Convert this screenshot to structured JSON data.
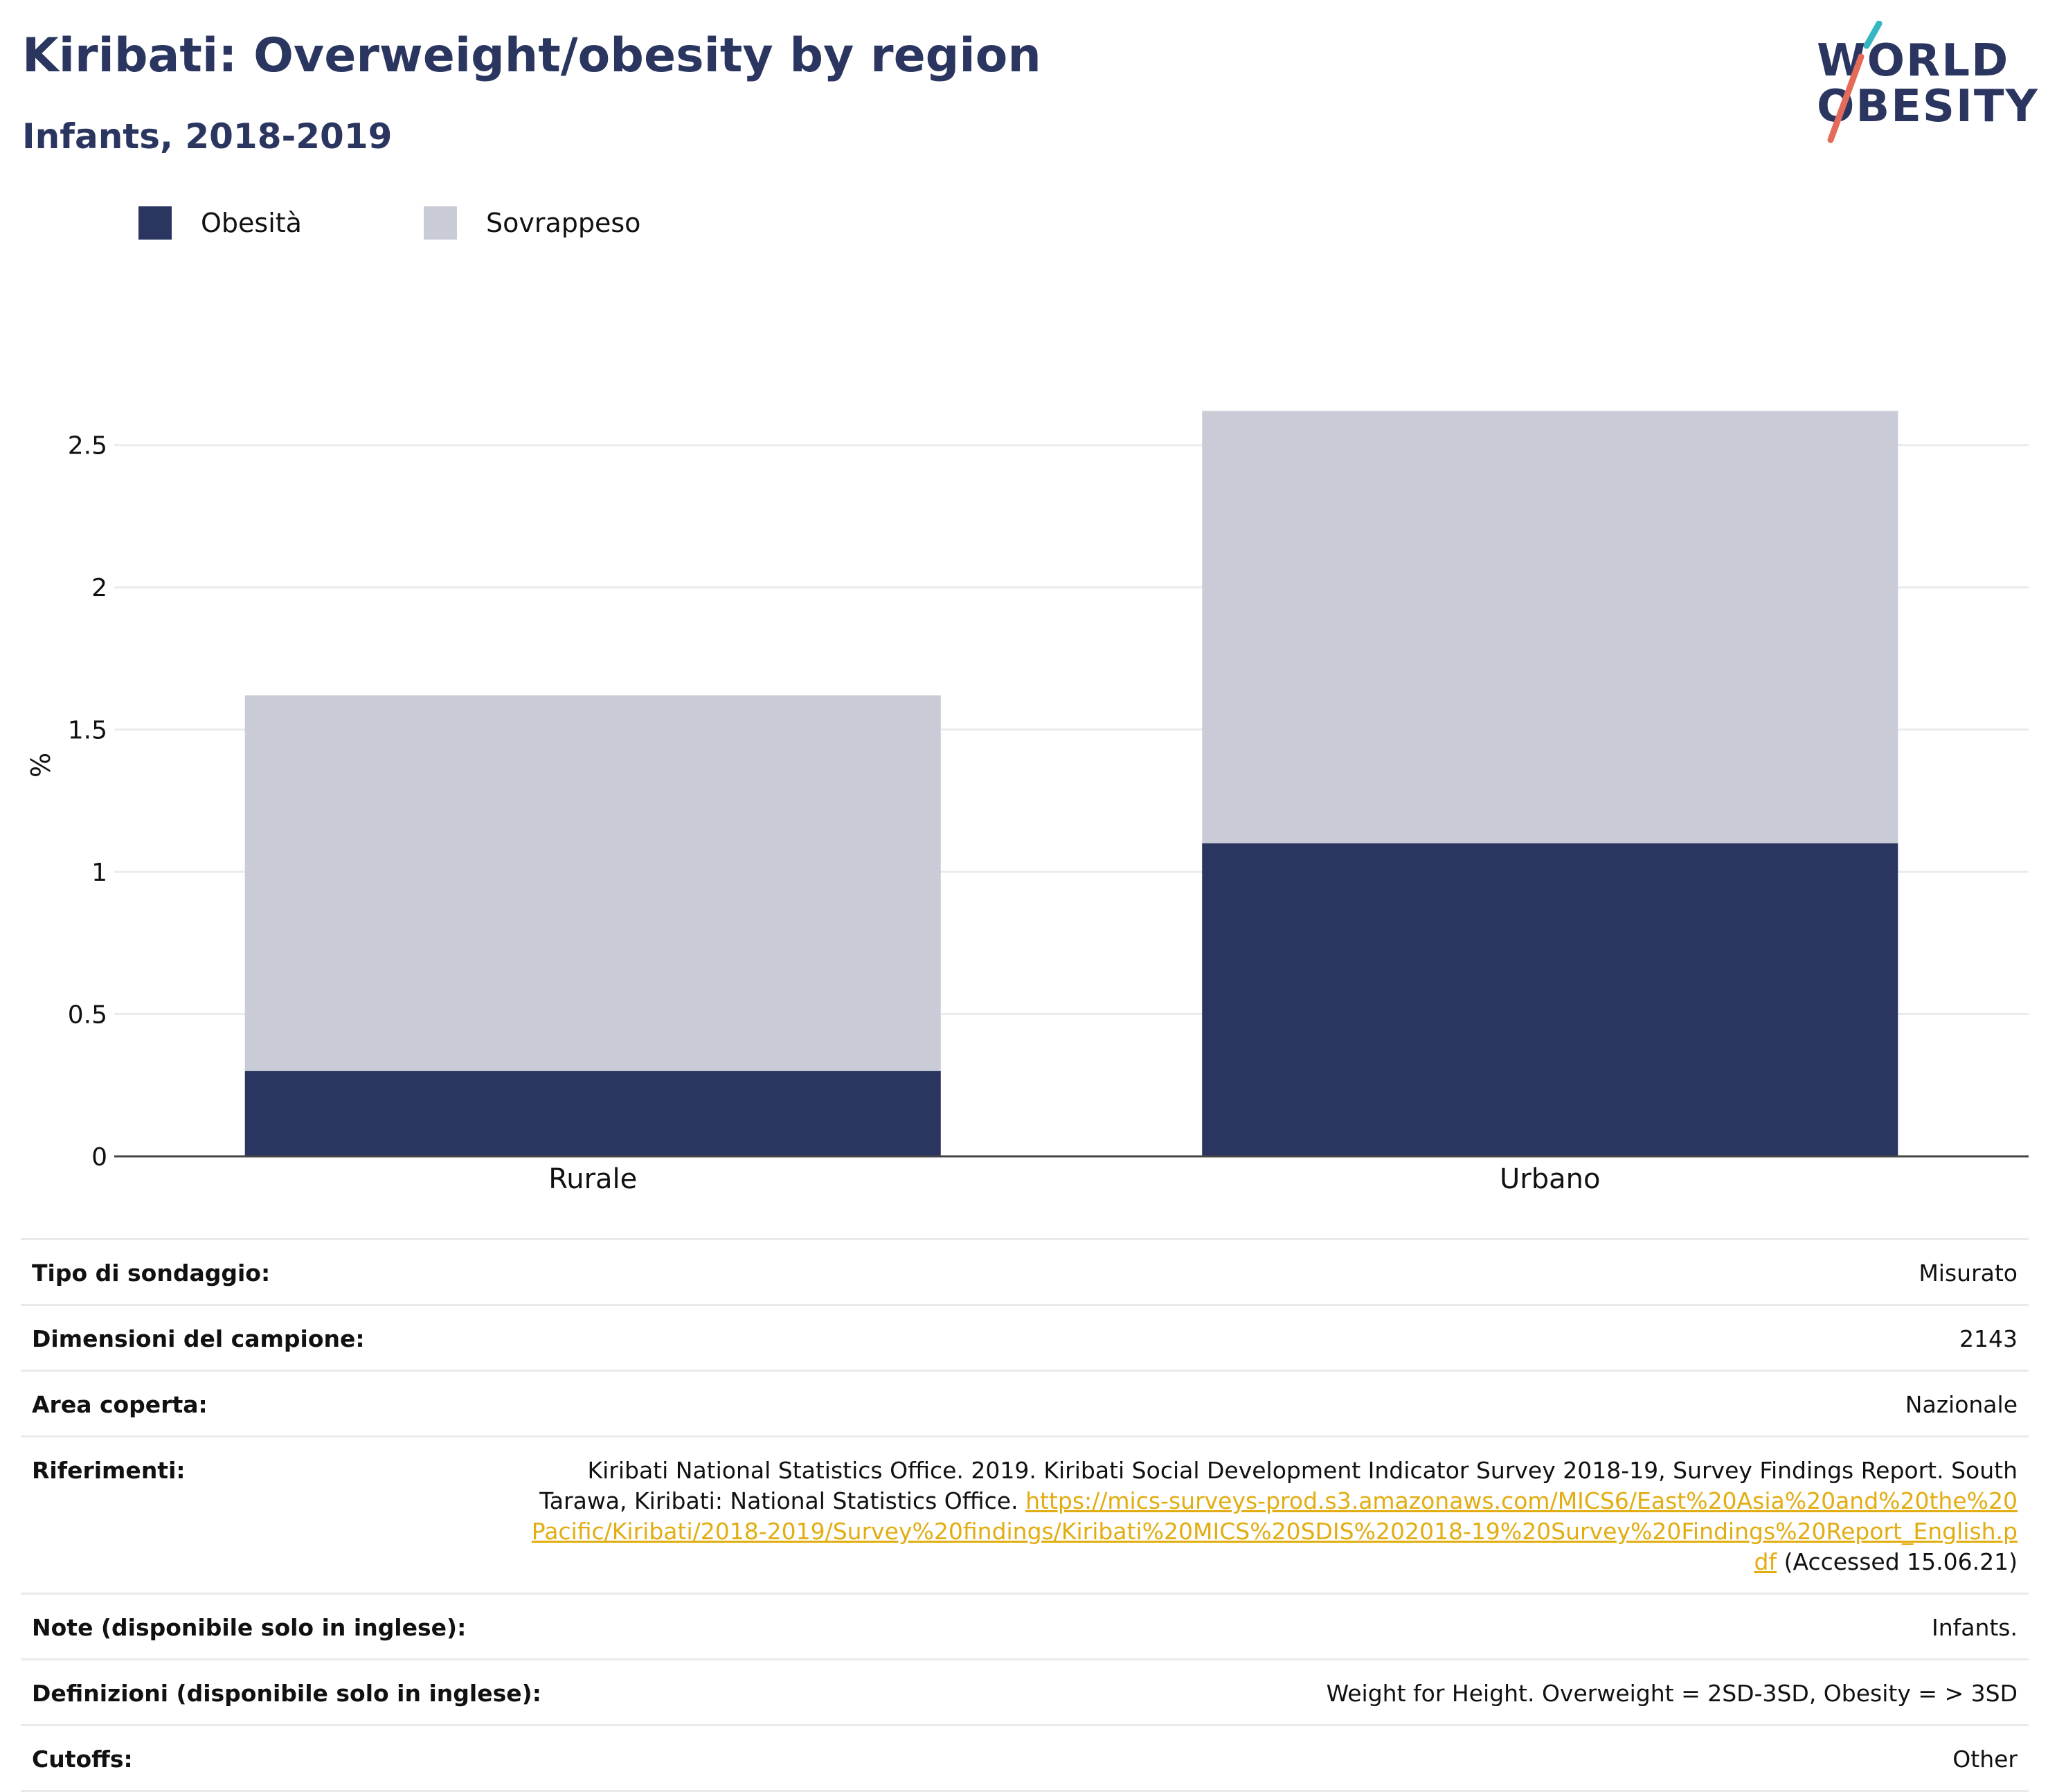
{
  "header": {
    "title": "Kiribati: Overweight/obesity by region",
    "subtitle": "Infants, 2018-2019"
  },
  "logo": {
    "line1": "WORLD",
    "line2": "OBESITY"
  },
  "legend": [
    {
      "label": "Obesità",
      "color": "#2b3660"
    },
    {
      "label": "Sovrappeso",
      "color": "#c9ccd7"
    }
  ],
  "chart_data": {
    "type": "bar",
    "stacked": true,
    "categories": [
      "Rurale",
      "Urbano"
    ],
    "series": [
      {
        "name": "Obesità",
        "values": [
          0.3,
          1.1
        ],
        "color": "#2b3660"
      },
      {
        "name": "Sovrappeso",
        "values": [
          1.32,
          1.52
        ],
        "color": "#c9ccd7"
      }
    ],
    "ylabel": "%",
    "xlabel": "",
    "ylim": [
      0,
      2.75
    ],
    "yticks": [
      0,
      0.5,
      1,
      1.5,
      2,
      2.5
    ],
    "ytick_labels": [
      "0",
      "0.5",
      "1",
      "1.5",
      "2",
      "2.5"
    ],
    "grid": true,
    "legend_position": "top-left"
  },
  "meta": {
    "rows": [
      {
        "key": "Tipo di sondaggio:",
        "value": "Misurato"
      },
      {
        "key": "Dimensioni del campione:",
        "value": "2143"
      },
      {
        "key": "Area coperta:",
        "value": "Nazionale"
      },
      {
        "key": "Riferimenti:",
        "value": "Kiribati National Statistics Office. 2019. Kiribati Social Development Indicator Survey 2018-19, Survey Findings Report. South Tarawa, Kiribati: National Statistics Office.",
        "link": "https://mics-surveys-prod.s3.amazonaws.com/MICS6/East%20Asia%20and%20the%20Pacific/Kiribati/2018-2019/Survey%20findings/Kiribati%20MICS%20SDIS%202018-19%20Survey%20Findings%20Report_English.pdf",
        "suffix": "(Accessed 15.06.21)"
      },
      {
        "key": "Note (disponibile solo in inglese):",
        "value": "Infants."
      },
      {
        "key": "Definizioni (disponibile solo in inglese):",
        "value": "Weight for Height. Overweight = 2SD-3SD, Obesity = > 3SD"
      },
      {
        "key": "Cutoffs:",
        "value": "Other"
      }
    ]
  }
}
